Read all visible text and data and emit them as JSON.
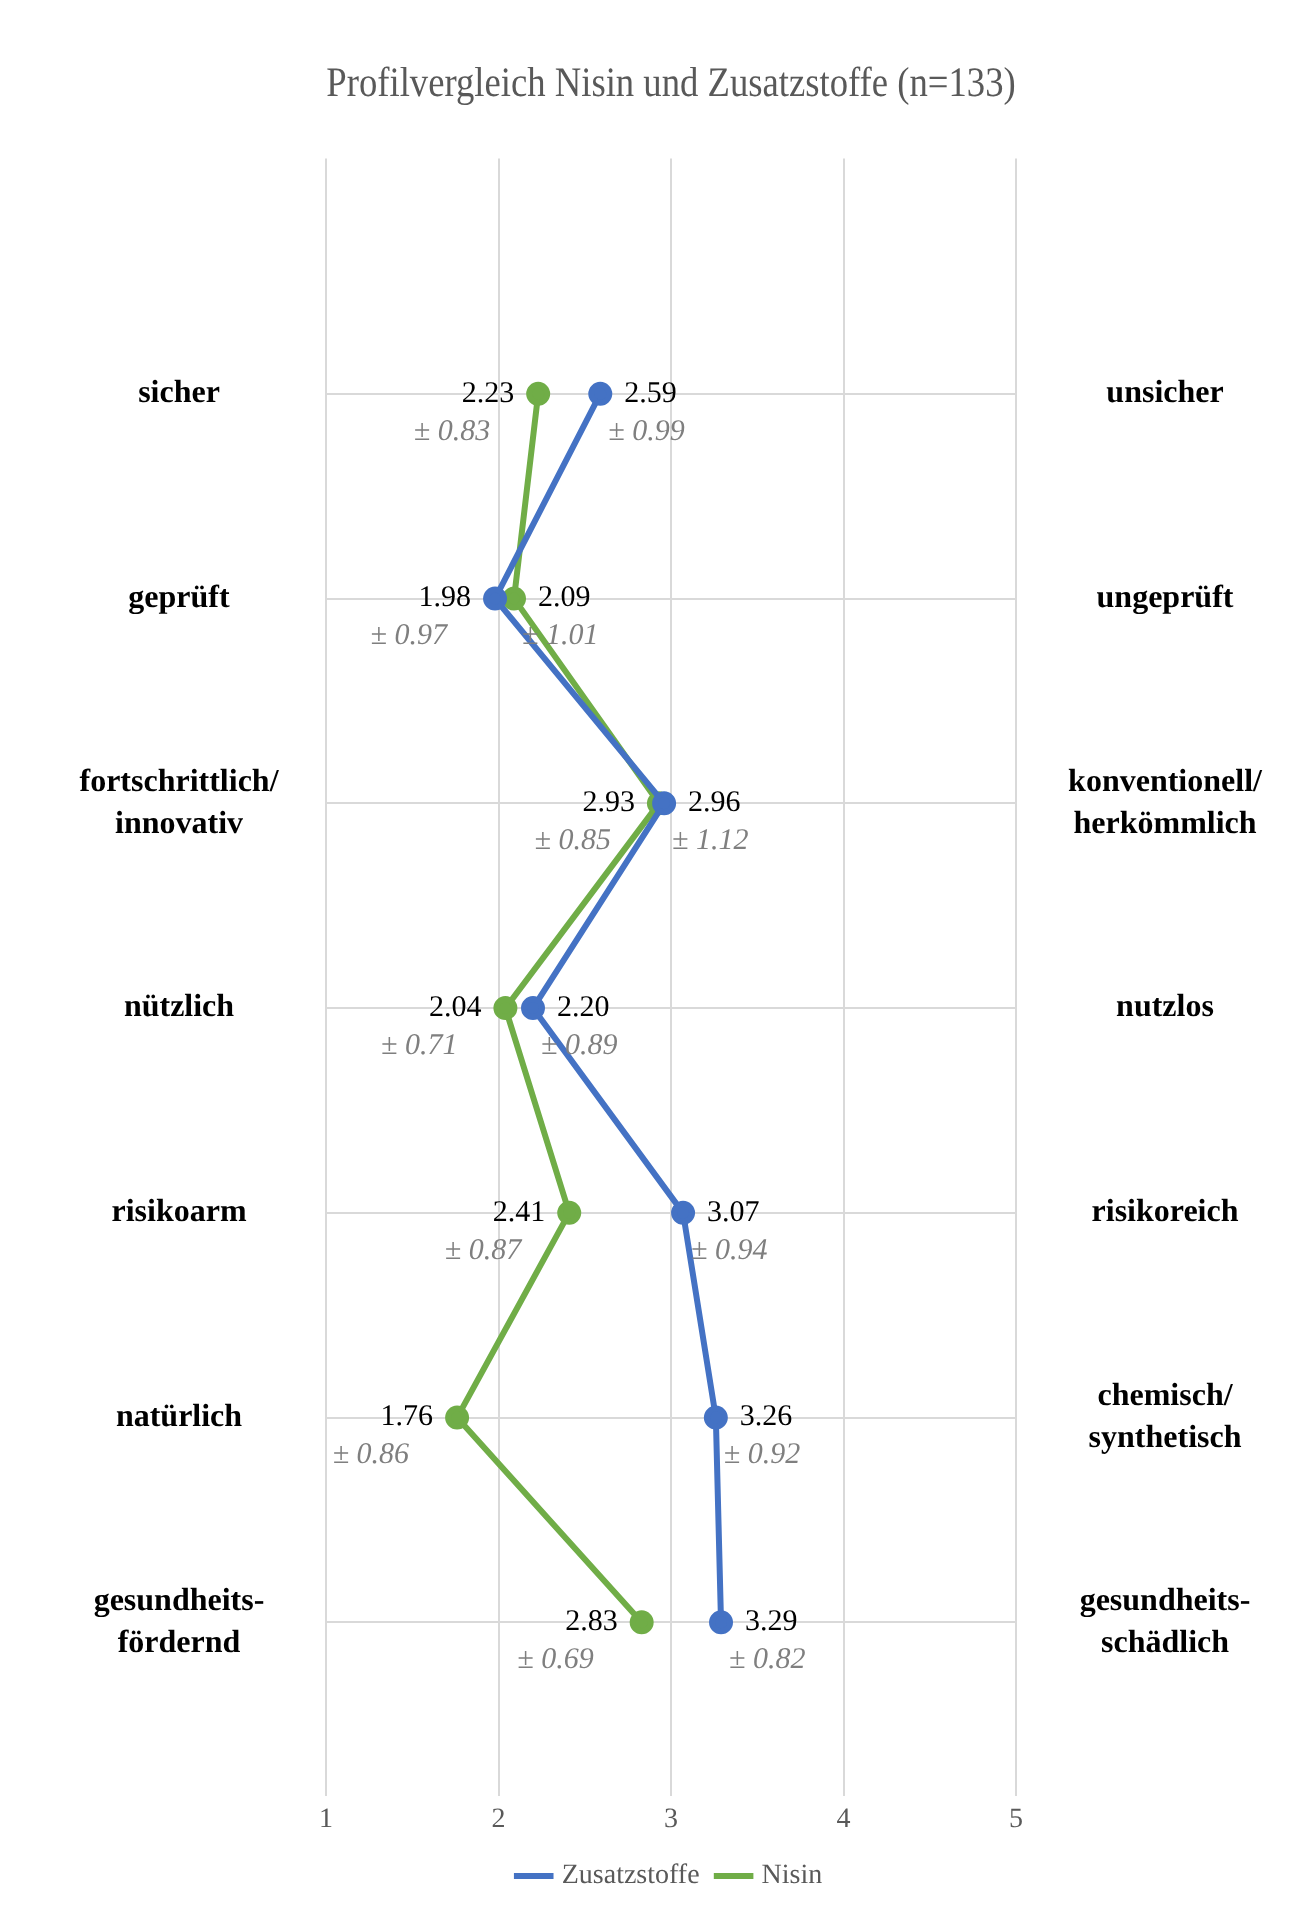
{
  "chart_data": {
    "type": "line",
    "title": "Profilvergleich Nisin und Zusatzstoffe (n=133)",
    "orientation": "horizontal",
    "categories": [
      "sicher",
      "geprüft",
      "fortschrittlich/\ninnovativ",
      "nützlich",
      "risikoarm",
      "natürlich",
      "gesundheits-\nfördernd"
    ],
    "y2_categories": [
      "unsicher",
      "ungeprüft",
      "konventionell/\nherkömmlich",
      "nutzlos",
      "risikoreich",
      "chemisch/\nsynthetisch",
      "gesundheits-\nschädlich"
    ],
    "xlim": [
      1,
      5
    ],
    "xticks": [
      1,
      2,
      3,
      4,
      5
    ],
    "grid": true,
    "legend": "bottom",
    "marker": "circle",
    "series": [
      {
        "name": "Zusatzstoffe",
        "color": "#4472c4",
        "values": [
          2.59,
          1.98,
          2.96,
          2.2,
          3.07,
          3.26,
          3.29
        ],
        "value_labels": [
          "2.59\n± 0.99",
          "1.98\n± 0.97",
          "2.96\n± 1.12",
          "2.20\n± 0.89",
          "3.07\n± 0.94",
          "3.26\n± 0.92",
          "3.29\n± 0.82"
        ]
      },
      {
        "name": "Nisin",
        "color": "#70ad47",
        "values": [
          2.23,
          2.09,
          2.93,
          2.04,
          2.41,
          1.76,
          2.83
        ],
        "value_labels": [
          "2.23\n± 0.83",
          "2.09\n± 1.01",
          "2.93\n± 0.85",
          "2.04\n± 0.71",
          "2.41\n± 0.87",
          "1.76\n± 0.86",
          "2.83\n± 0.69"
        ]
      }
    ]
  }
}
